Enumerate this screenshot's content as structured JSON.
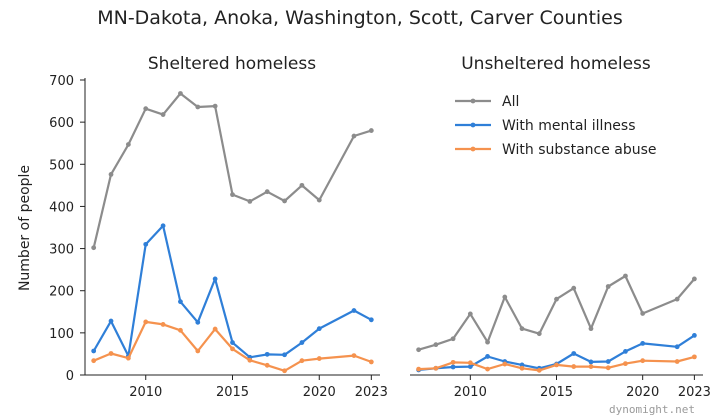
{
  "suptitle": "MN-Dakota, Anoka, Washington, Scott, Carver Counties",
  "ylabel": "Number of people",
  "watermark": "dynomight.net",
  "legend": [
    {
      "label": "All",
      "color": "#8c8c8c"
    },
    {
      "label": "With mental illness",
      "color": "#2f7fd8"
    },
    {
      "label": "With substance abuse",
      "color": "#f5924e"
    }
  ],
  "chart_data": [
    {
      "type": "line",
      "title": "Sheltered homeless",
      "xlim": [
        2006.5,
        2023.5
      ],
      "ylim": [
        0,
        700
      ],
      "xticks": [
        2010,
        2015,
        2020,
        2023
      ],
      "yticks": [
        0,
        100,
        200,
        300,
        400,
        500,
        600,
        700
      ],
      "x": [
        2007,
        2008,
        2009,
        2010,
        2011,
        2012,
        2013,
        2014,
        2015,
        2016,
        2017,
        2018,
        2019,
        2020,
        2022,
        2023
      ],
      "series": [
        {
          "name": "All",
          "color": "#8c8c8c",
          "values": [
            302,
            476,
            547,
            632,
            618,
            668,
            636,
            638,
            428,
            412,
            435,
            413,
            450,
            415,
            567,
            580
          ]
        },
        {
          "name": "With mental illness",
          "color": "#2f7fd8",
          "values": [
            57,
            128,
            45,
            310,
            354,
            174,
            125,
            228,
            77,
            42,
            49,
            48,
            77,
            110,
            153,
            131
          ]
        },
        {
          "name": "With substance abuse",
          "color": "#f5924e",
          "values": [
            34,
            51,
            40,
            126,
            120,
            106,
            57,
            109,
            62,
            35,
            23,
            10,
            34,
            39,
            46,
            31
          ]
        }
      ]
    },
    {
      "type": "line",
      "title": "Unsheltered homeless",
      "xlim": [
        2006.5,
        2023.5
      ],
      "ylim": [
        0,
        700
      ],
      "xticks": [
        2010,
        2015,
        2020,
        2023
      ],
      "yticks": [],
      "x": [
        2007,
        2008,
        2009,
        2010,
        2011,
        2012,
        2013,
        2014,
        2015,
        2016,
        2017,
        2018,
        2019,
        2020,
        2022,
        2023
      ],
      "series": [
        {
          "name": "All",
          "color": "#8c8c8c",
          "values": [
            60,
            72,
            86,
            145,
            78,
            185,
            110,
            98,
            180,
            206,
            110,
            210,
            235,
            146,
            180,
            228
          ]
        },
        {
          "name": "With mental illness",
          "color": "#2f7fd8",
          "values": [
            12,
            16,
            19,
            20,
            44,
            32,
            24,
            16,
            26,
            51,
            31,
            32,
            56,
            75,
            67,
            94
          ]
        },
        {
          "name": "With substance abuse",
          "color": "#f5924e",
          "values": [
            14,
            16,
            30,
            29,
            14,
            26,
            16,
            11,
            24,
            20,
            20,
            17,
            27,
            34,
            32,
            43
          ]
        }
      ]
    }
  ]
}
